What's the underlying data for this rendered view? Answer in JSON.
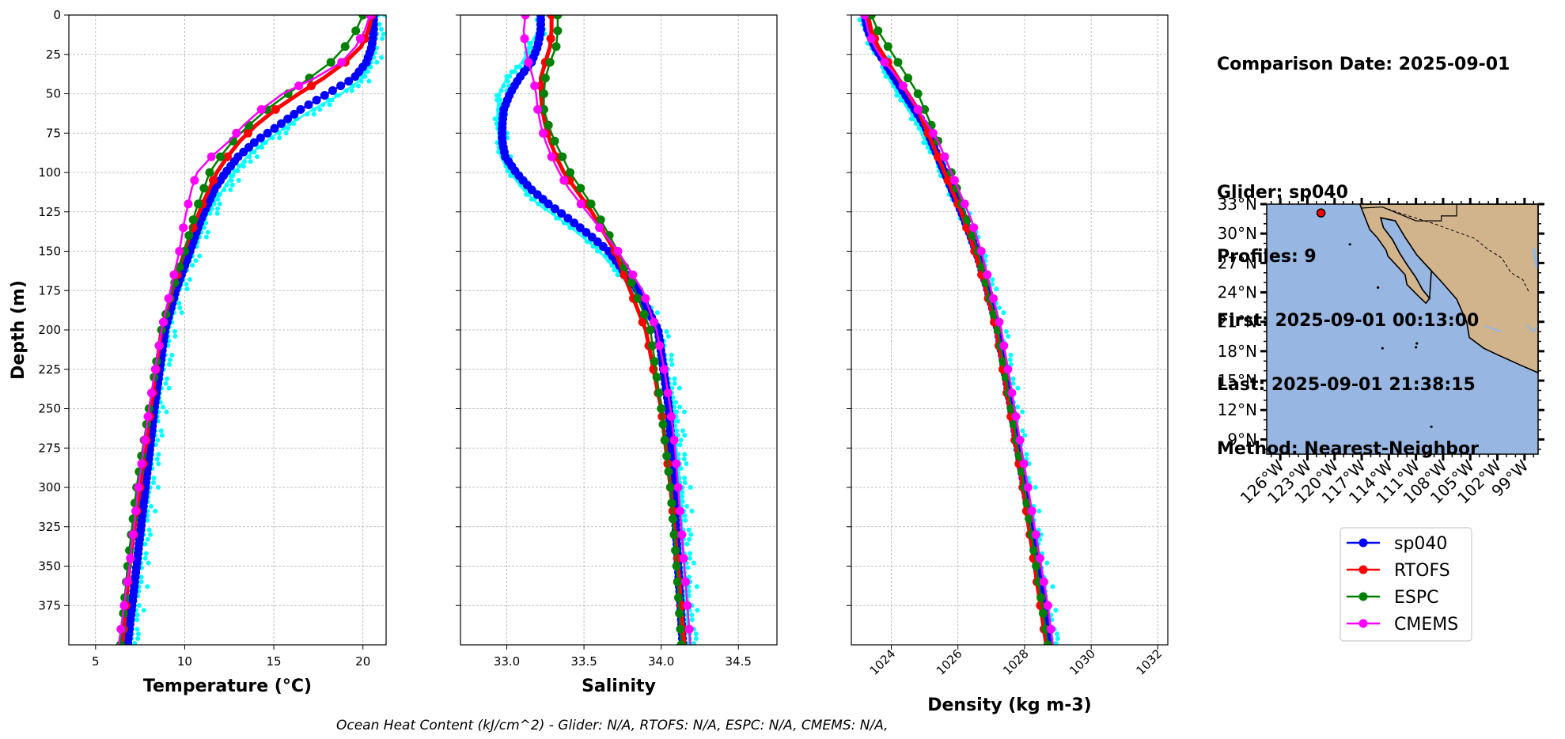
{
  "info": {
    "comparison_date": "Comparison Date: 2025-09-01",
    "glider": "Glider: sp040",
    "profiles": "Profiles: 9",
    "first": "First: 2025-09-01 00:13:00",
    "last": "Last: 2025-09-01 21:38:15",
    "method": "Method: Nearest-Neighbor"
  },
  "footer": "Ocean Heat Content (kJ/cm^2) - Glider: N/A,  RTOFS: N/A,  ESPC: N/A,  CMEMS: N/A,",
  "colors": {
    "sp040": "#0000ff",
    "RTOFS": "#ff0000",
    "ESPC": "#008000",
    "CMEMS": "#ff00ff",
    "glider_raw": "#00ffff",
    "ocean": "#97b6e1",
    "land": "#d2b48c"
  },
  "legend": [
    "sp040",
    "RTOFS",
    "ESPC",
    "CMEMS"
  ],
  "chart_data": [
    {
      "type": "line",
      "id": "temperature",
      "xlabel": "Temperature (°C)",
      "ylabel": "Depth (m)",
      "xlim": [
        3.5,
        21.3
      ],
      "ylim": [
        400,
        0
      ],
      "xticks": [
        5,
        10,
        15,
        20
      ],
      "yticks": [
        0,
        25,
        50,
        75,
        100,
        125,
        150,
        175,
        200,
        225,
        250,
        275,
        300,
        325,
        350,
        375
      ],
      "grid": true,
      "series": [
        {
          "name": "sp040",
          "depth": [
            0,
            10,
            20,
            30,
            40,
            50,
            60,
            70,
            80,
            90,
            100,
            110,
            120,
            130,
            140,
            150,
            175,
            200,
            250,
            300,
            350,
            400
          ],
          "values": [
            20.6,
            20.6,
            20.5,
            20.2,
            19.5,
            18.0,
            16.5,
            15.3,
            14.0,
            13.0,
            12.3,
            11.7,
            11.3,
            10.9,
            10.6,
            10.3,
            9.5,
            8.9,
            8.3,
            7.8,
            7.3,
            6.8
          ]
        },
        {
          "name": "RTOFS",
          "depth": [
            0,
            10,
            20,
            30,
            40,
            50,
            60,
            70,
            80,
            90,
            100,
            120,
            140,
            150,
            175,
            200,
            250,
            300,
            350,
            400
          ],
          "values": [
            20.5,
            20.3,
            19.9,
            19.0,
            17.8,
            16.4,
            15.1,
            14.0,
            13.1,
            12.4,
            11.8,
            11.0,
            10.3,
            10.0,
            9.3,
            8.7,
            8.1,
            7.5,
            6.9,
            6.5
          ]
        },
        {
          "name": "ESPC",
          "depth": [
            0,
            10,
            20,
            30,
            40,
            50,
            60,
            70,
            80,
            90,
            100,
            125,
            150,
            175,
            200,
            250,
            300,
            350,
            400
          ],
          "values": [
            20.0,
            19.6,
            19.0,
            18.2,
            17.0,
            15.8,
            14.6,
            13.6,
            12.7,
            12.0,
            11.4,
            10.6,
            10.0,
            9.3,
            8.7,
            8.0,
            7.3,
            6.8,
            6.4
          ]
        },
        {
          "name": "CMEMS",
          "depth": [
            0,
            10,
            20,
            30,
            40,
            50,
            60,
            70,
            80,
            90,
            100,
            110,
            120,
            130,
            150,
            175,
            200,
            250,
            300,
            350,
            400
          ],
          "values": [
            20.4,
            20.1,
            19.6,
            18.8,
            17.3,
            15.5,
            14.3,
            13.3,
            12.5,
            11.5,
            10.7,
            10.4,
            10.2,
            10.0,
            9.7,
            9.2,
            8.7,
            8.0,
            7.4,
            6.9,
            6.3
          ]
        },
        {
          "name": "glider raw",
          "depth": [
            0,
            10,
            20,
            30,
            40,
            50,
            60,
            70,
            80,
            90,
            100,
            110,
            120,
            130,
            150,
            175,
            200,
            250,
            300,
            350,
            400
          ],
          "values": [
            20.8,
            20.7,
            20.6,
            20.4,
            20.0,
            18.8,
            17.2,
            15.8,
            14.6,
            13.5,
            12.8,
            12.2,
            11.6,
            11.1,
            10.4,
            9.6,
            9.0,
            8.4,
            7.9,
            7.4,
            6.9
          ]
        }
      ]
    },
    {
      "type": "line",
      "id": "salinity",
      "xlabel": "Salinity",
      "xlim": [
        32.7,
        34.75
      ],
      "ylim": [
        400,
        0
      ],
      "xticks": [
        33.0,
        33.5,
        34.0,
        34.5
      ],
      "grid": true,
      "series": [
        {
          "name": "sp040",
          "depth": [
            0,
            10,
            20,
            30,
            40,
            50,
            60,
            70,
            80,
            90,
            100,
            110,
            120,
            130,
            140,
            150,
            175,
            200,
            250,
            300,
            350,
            400
          ],
          "values": [
            33.22,
            33.22,
            33.2,
            33.16,
            33.08,
            33.02,
            32.98,
            32.97,
            32.97,
            32.99,
            33.06,
            33.15,
            33.27,
            33.41,
            33.54,
            33.66,
            33.85,
            33.98,
            34.05,
            34.08,
            34.11,
            34.14
          ]
        },
        {
          "name": "RTOFS",
          "depth": [
            0,
            10,
            20,
            30,
            40,
            50,
            60,
            70,
            80,
            90,
            100,
            125,
            150,
            175,
            200,
            250,
            300,
            350,
            400
          ],
          "values": [
            33.29,
            33.29,
            33.28,
            33.25,
            33.22,
            33.22,
            33.23,
            33.25,
            33.28,
            33.32,
            33.37,
            33.55,
            33.7,
            33.8,
            33.9,
            34.0,
            34.06,
            34.11,
            34.15
          ]
        },
        {
          "name": "ESPC",
          "depth": [
            0,
            10,
            20,
            30,
            40,
            50,
            60,
            70,
            80,
            90,
            100,
            125,
            150,
            175,
            200,
            250,
            300,
            350,
            400
          ],
          "values": [
            33.33,
            33.33,
            33.32,
            33.28,
            33.25,
            33.24,
            33.24,
            33.27,
            33.31,
            33.36,
            33.41,
            33.58,
            33.72,
            33.83,
            33.93,
            34.0,
            34.06,
            34.1,
            34.13
          ]
        },
        {
          "name": "CMEMS",
          "depth": [
            0,
            10,
            20,
            30,
            40,
            50,
            60,
            70,
            80,
            90,
            100,
            110,
            120,
            130,
            150,
            175,
            200,
            225,
            250,
            275,
            300,
            325,
            350,
            375,
            400
          ],
          "values": [
            33.12,
            33.11,
            33.12,
            33.14,
            33.17,
            33.19,
            33.2,
            33.22,
            33.25,
            33.29,
            33.34,
            33.4,
            33.48,
            33.56,
            33.72,
            33.88,
            33.97,
            34.02,
            34.06,
            34.09,
            34.11,
            34.13,
            34.15,
            34.17,
            34.19
          ]
        },
        {
          "name": "glider raw",
          "depth": [
            0,
            10,
            20,
            30,
            40,
            50,
            60,
            70,
            80,
            90,
            100,
            110,
            120,
            130,
            140,
            150,
            175,
            200,
            250,
            300,
            350,
            400
          ],
          "values": [
            33.22,
            33.2,
            33.15,
            33.1,
            33.0,
            32.95,
            32.94,
            32.94,
            32.95,
            32.96,
            33.02,
            33.1,
            33.2,
            33.35,
            33.48,
            33.6,
            33.82,
            33.98,
            34.08,
            34.12,
            34.15,
            34.18
          ]
        }
      ]
    },
    {
      "type": "line",
      "id": "density",
      "xlabel": "Density (kg m-3)",
      "xlim": [
        1022.8,
        1032.3
      ],
      "ylim": [
        400,
        0
      ],
      "xticks": [
        1024,
        1026,
        1028,
        1030,
        1032
      ],
      "grid": true,
      "series": [
        {
          "name": "sp040",
          "depth": [
            0,
            10,
            20,
            30,
            40,
            50,
            60,
            70,
            80,
            90,
            100,
            110,
            120,
            130,
            150,
            175,
            200,
            250,
            300,
            350,
            400
          ],
          "values": [
            1023.2,
            1023.3,
            1023.5,
            1023.8,
            1024.1,
            1024.4,
            1024.7,
            1025.0,
            1025.2,
            1025.4,
            1025.6,
            1025.8,
            1026.0,
            1026.2,
            1026.55,
            1026.9,
            1027.2,
            1027.6,
            1028.0,
            1028.4,
            1028.75
          ]
        },
        {
          "name": "RTOFS",
          "depth": [
            0,
            10,
            20,
            30,
            40,
            50,
            60,
            70,
            80,
            90,
            100,
            125,
            150,
            175,
            200,
            250,
            300,
            350,
            400
          ],
          "values": [
            1023.3,
            1023.4,
            1023.6,
            1023.9,
            1024.2,
            1024.5,
            1024.8,
            1025.0,
            1025.2,
            1025.4,
            1025.6,
            1026.1,
            1026.5,
            1026.85,
            1027.15,
            1027.55,
            1027.95,
            1028.3,
            1028.65
          ]
        },
        {
          "name": "ESPC",
          "depth": [
            0,
            10,
            20,
            30,
            40,
            50,
            60,
            70,
            80,
            90,
            100,
            125,
            150,
            175,
            200,
            250,
            300,
            350,
            400
          ],
          "values": [
            1023.4,
            1023.6,
            1023.9,
            1024.2,
            1024.5,
            1024.8,
            1025.0,
            1025.2,
            1025.4,
            1025.6,
            1025.8,
            1026.2,
            1026.6,
            1026.9,
            1027.2,
            1027.6,
            1028.0,
            1028.35,
            1028.7
          ]
        },
        {
          "name": "CMEMS",
          "depth": [
            0,
            10,
            20,
            30,
            40,
            50,
            60,
            70,
            80,
            90,
            100,
            110,
            120,
            130,
            150,
            175,
            200,
            250,
            300,
            325,
            350,
            375,
            400
          ],
          "values": [
            1023.2,
            1023.3,
            1023.5,
            1023.8,
            1024.2,
            1024.5,
            1024.8,
            1025.1,
            1025.4,
            1025.6,
            1025.8,
            1026.0,
            1026.2,
            1026.4,
            1026.7,
            1027.0,
            1027.3,
            1027.7,
            1028.1,
            1028.3,
            1028.5,
            1028.7,
            1028.85
          ]
        },
        {
          "name": "glider raw",
          "depth": [
            0,
            10,
            20,
            30,
            40,
            50,
            60,
            70,
            80,
            90,
            100,
            110,
            120,
            130,
            150,
            175,
            200,
            250,
            300,
            350,
            400
          ],
          "values": [
            1023.1,
            1023.2,
            1023.4,
            1023.7,
            1023.9,
            1024.2,
            1024.5,
            1024.8,
            1025.0,
            1025.3,
            1025.5,
            1025.7,
            1025.95,
            1026.15,
            1026.5,
            1026.9,
            1027.2,
            1027.6,
            1028.0,
            1028.4,
            1028.8
          ]
        }
      ]
    }
  ],
  "map": {
    "lon_ticks": [
      "126°W",
      "123°W",
      "120°W",
      "117°W",
      "114°W",
      "111°W",
      "108°W",
      "105°W",
      "102°W",
      "99°W"
    ],
    "lat_ticks": [
      "33°N",
      "30°N",
      "27°N",
      "24°N",
      "21°N",
      "18°N",
      "15°N",
      "12°N",
      "9°N"
    ],
    "marker": {
      "lon": -121.5,
      "lat": 32.1
    }
  }
}
